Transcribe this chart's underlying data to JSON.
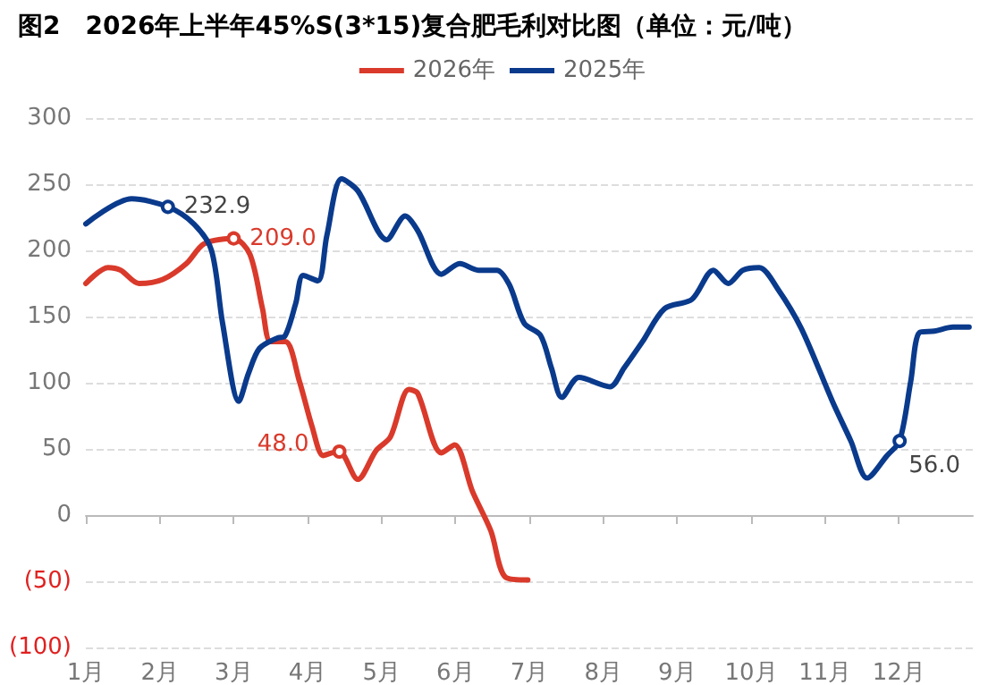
{
  "chart_data": {
    "type": "line",
    "title": "图2　2026年上半年45%S(3*15)复合肥毛利对比图（单位：元/吨）",
    "xlim": [
      1,
      13
    ],
    "xticks": [
      {
        "value": 1,
        "label": "1月"
      },
      {
        "value": 2,
        "label": "2月"
      },
      {
        "value": 3,
        "label": "3月"
      },
      {
        "value": 4,
        "label": "4月"
      },
      {
        "value": 5,
        "label": "5月"
      },
      {
        "value": 6,
        "label": "6月"
      },
      {
        "value": 7,
        "label": "7月"
      },
      {
        "value": 8,
        "label": "8月"
      },
      {
        "value": 9,
        "label": "9月"
      },
      {
        "value": 10,
        "label": "10月"
      },
      {
        "value": 11,
        "label": "11月"
      },
      {
        "value": 12,
        "label": "12月"
      }
    ],
    "ylim": [
      -100,
      300
    ],
    "yticks": [
      {
        "value": -100,
        "label": "(100)"
      },
      {
        "value": -50,
        "label": "(50)"
      },
      0,
      50,
      100,
      150,
      200,
      250,
      300
    ],
    "grid": "y",
    "legend": "top",
    "line_style": "solid",
    "series": [
      {
        "name": "2026年",
        "color": "#d93a2b",
        "x": [
          1.0,
          1.3,
          1.47,
          1.72,
          2.04,
          2.36,
          2.6,
          3.0,
          3.22,
          3.39,
          3.5,
          3.7,
          3.89,
          4.06,
          4.21,
          4.33,
          4.43,
          4.68,
          4.93,
          5.12,
          5.37,
          5.49,
          5.81,
          5.99,
          6.23,
          6.48,
          6.68,
          6.98
        ],
        "values": [
          175,
          187,
          185,
          175,
          178,
          190,
          205,
          209,
          197,
          156,
          131,
          131,
          101,
          67,
          45,
          47,
          48,
          27,
          49,
          59,
          95,
          92,
          47,
          53,
          18,
          -12,
          -47,
          -49
        ],
        "value_labels": [
          null,
          null,
          null,
          null,
          null,
          null,
          null,
          "209.0",
          null,
          null,
          null,
          null,
          null,
          null,
          null,
          null,
          "48.0",
          null,
          null,
          null,
          null,
          null,
          null,
          null,
          null,
          null,
          null,
          null
        ]
      },
      {
        "name": "2025年",
        "color": "#0a3a8c",
        "x": [
          1.0,
          1.62,
          2.11,
          2.46,
          2.7,
          2.85,
          3.07,
          3.2,
          3.35,
          3.6,
          3.69,
          3.84,
          3.94,
          4.14,
          4.26,
          4.46,
          4.68,
          5.07,
          5.32,
          5.49,
          5.81,
          6.06,
          6.31,
          6.56,
          6.73,
          6.93,
          7.15,
          7.3,
          7.44,
          7.67,
          8.09,
          8.28,
          8.53,
          8.83,
          9.2,
          9.49,
          9.69,
          9.89,
          10.11,
          10.36,
          10.68,
          11.1,
          11.35,
          11.57,
          11.84,
          12.01,
          12.16,
          12.28,
          12.48,
          12.73,
          12.95
        ],
        "values": [
          220,
          239,
          232.9,
          220,
          200,
          145,
          86,
          107,
          126,
          134,
          135,
          160,
          181,
          177,
          211,
          254,
          245,
          208,
          226,
          215,
          182,
          190,
          185,
          185,
          174,
          145,
          136,
          111,
          89,
          104,
          97,
          111,
          131,
          156,
          163,
          185,
          175,
          185,
          187,
          171,
          141,
          86,
          56,
          28,
          45,
          56,
          101,
          138,
          139,
          142,
          142
        ],
        "value_labels": [
          null,
          null,
          "232.9",
          null,
          null,
          null,
          null,
          null,
          null,
          null,
          null,
          null,
          null,
          null,
          null,
          null,
          null,
          null,
          null,
          null,
          null,
          null,
          null,
          null,
          null,
          null,
          null,
          null,
          null,
          null,
          null,
          null,
          null,
          null,
          null,
          null,
          null,
          null,
          null,
          null,
          null,
          null,
          null,
          null,
          null,
          "56.0",
          null,
          null,
          null,
          null,
          null
        ]
      }
    ]
  }
}
